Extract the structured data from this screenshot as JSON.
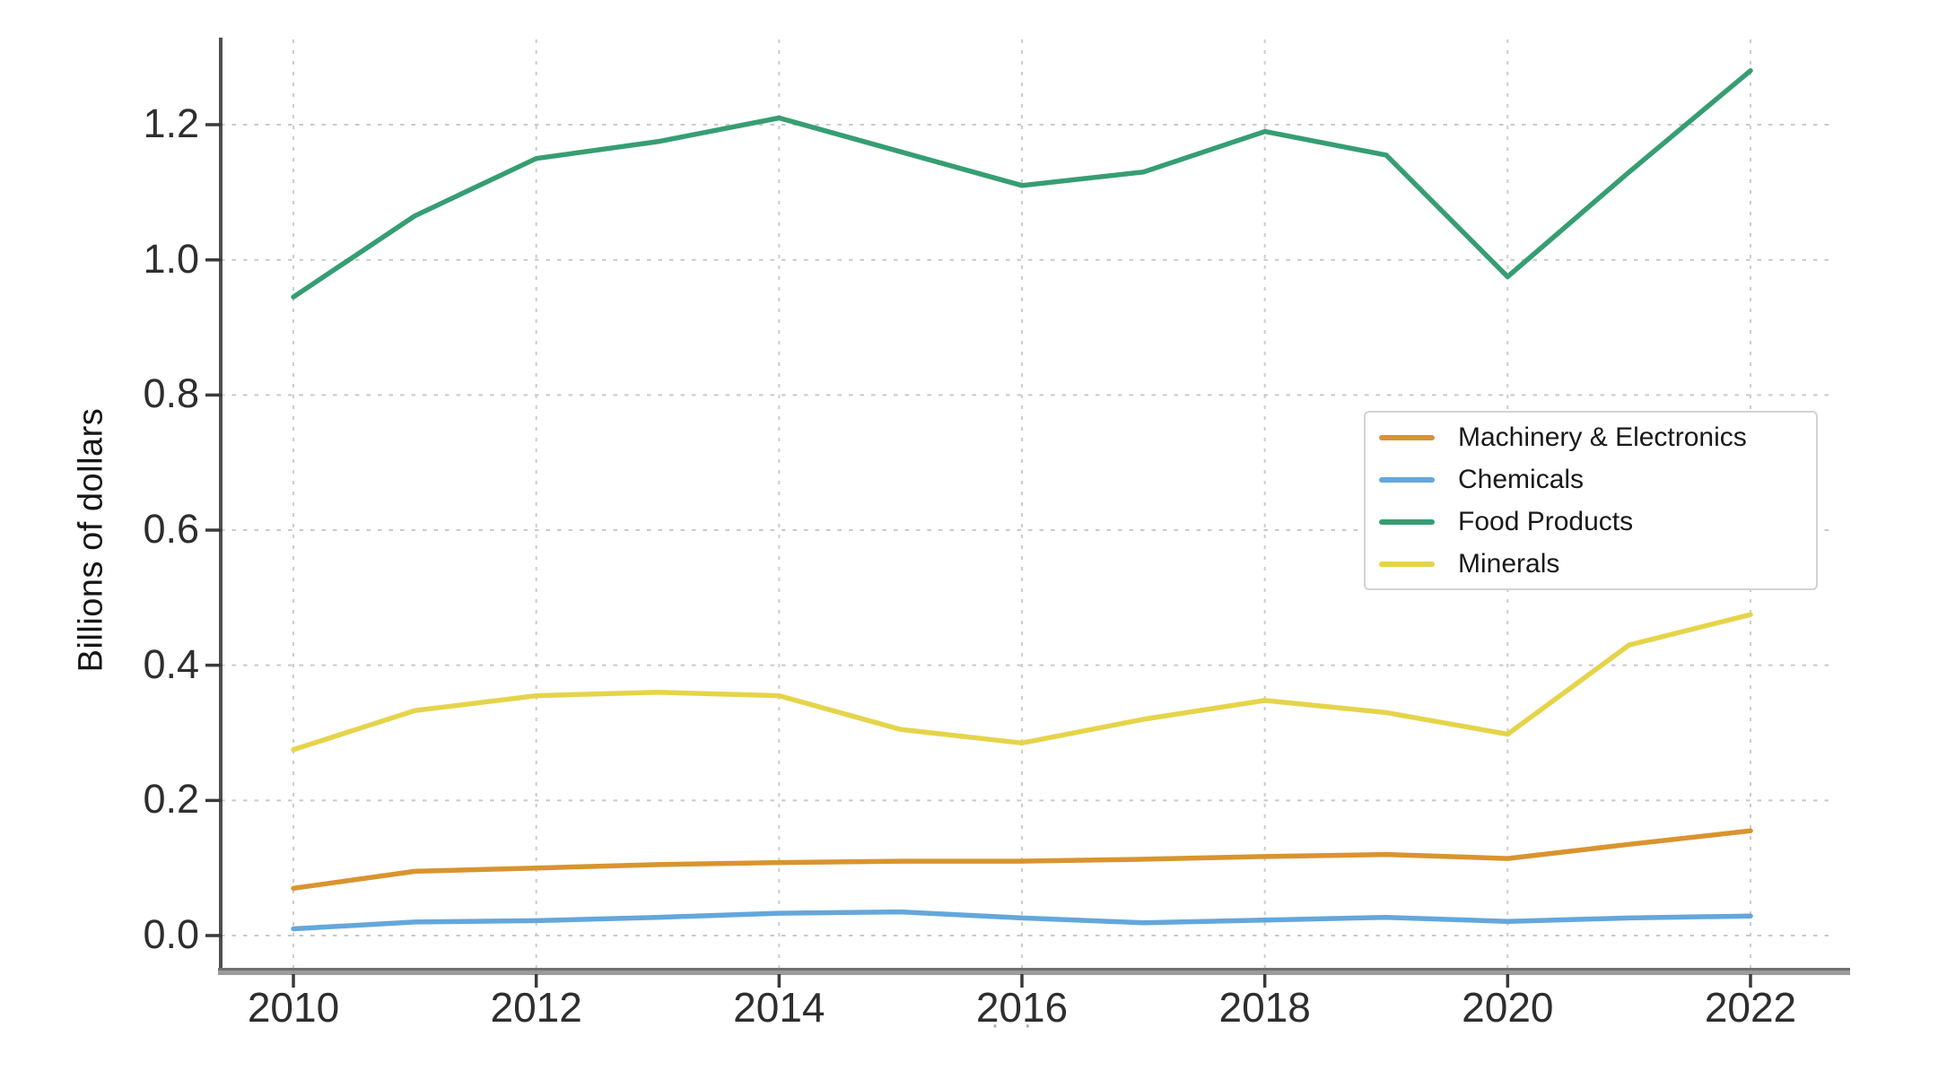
{
  "page": {
    "background": "#ffffff"
  },
  "chart_data": {
    "type": "line",
    "title": "",
    "xlabel": "",
    "ylabel": "Billions of dollars",
    "x": [
      2010,
      2011,
      2012,
      2013,
      2014,
      2015,
      2016,
      2017,
      2018,
      2019,
      2020,
      2021,
      2022
    ],
    "xticks": [
      2010,
      2012,
      2014,
      2016,
      2018,
      2020,
      2022
    ],
    "xtick_labels": [
      "2010",
      "2012",
      "2014",
      "2016",
      "2018",
      "2020",
      "2022"
    ],
    "yticks": [
      0.0,
      0.2,
      0.4,
      0.6,
      0.8,
      1.0,
      1.2
    ],
    "ytick_labels": [
      "0.0",
      "0.2",
      "0.4",
      "0.6",
      "0.8",
      "1.0",
      "1.2"
    ],
    "ylim": [
      -0.05,
      1.33
    ],
    "xlim": [
      2009.4,
      2022.8
    ],
    "grid": true,
    "grid_color": "#c9c9c9",
    "axis_color": "#4f4f4f",
    "text_color": "#2e2e2e",
    "legend_position": "center-right",
    "series": [
      {
        "name": "Machinery & Electronics",
        "color": "#d9942f",
        "values": [
          0.07,
          0.095,
          0.1,
          0.105,
          0.108,
          0.11,
          0.11,
          0.113,
          0.117,
          0.12,
          0.114,
          0.135,
          0.155
        ]
      },
      {
        "name": "Chemicals",
        "color": "#64a7db",
        "values": [
          0.01,
          0.02,
          0.022,
          0.027,
          0.033,
          0.035,
          0.026,
          0.019,
          0.023,
          0.027,
          0.021,
          0.026,
          0.029
        ]
      },
      {
        "name": "Food Products",
        "color": "#369e72",
        "values": [
          0.945,
          1.065,
          1.15,
          1.175,
          1.21,
          1.16,
          1.11,
          1.13,
          1.19,
          1.155,
          0.975,
          1.13,
          1.28
        ]
      },
      {
        "name": "Minerals",
        "color": "#e5d44a",
        "values": [
          0.275,
          0.333,
          0.355,
          0.36,
          0.355,
          0.305,
          0.285,
          0.32,
          0.348,
          0.33,
          0.298,
          0.43,
          0.475
        ]
      }
    ],
    "footnote_artifact": "· ·"
  }
}
